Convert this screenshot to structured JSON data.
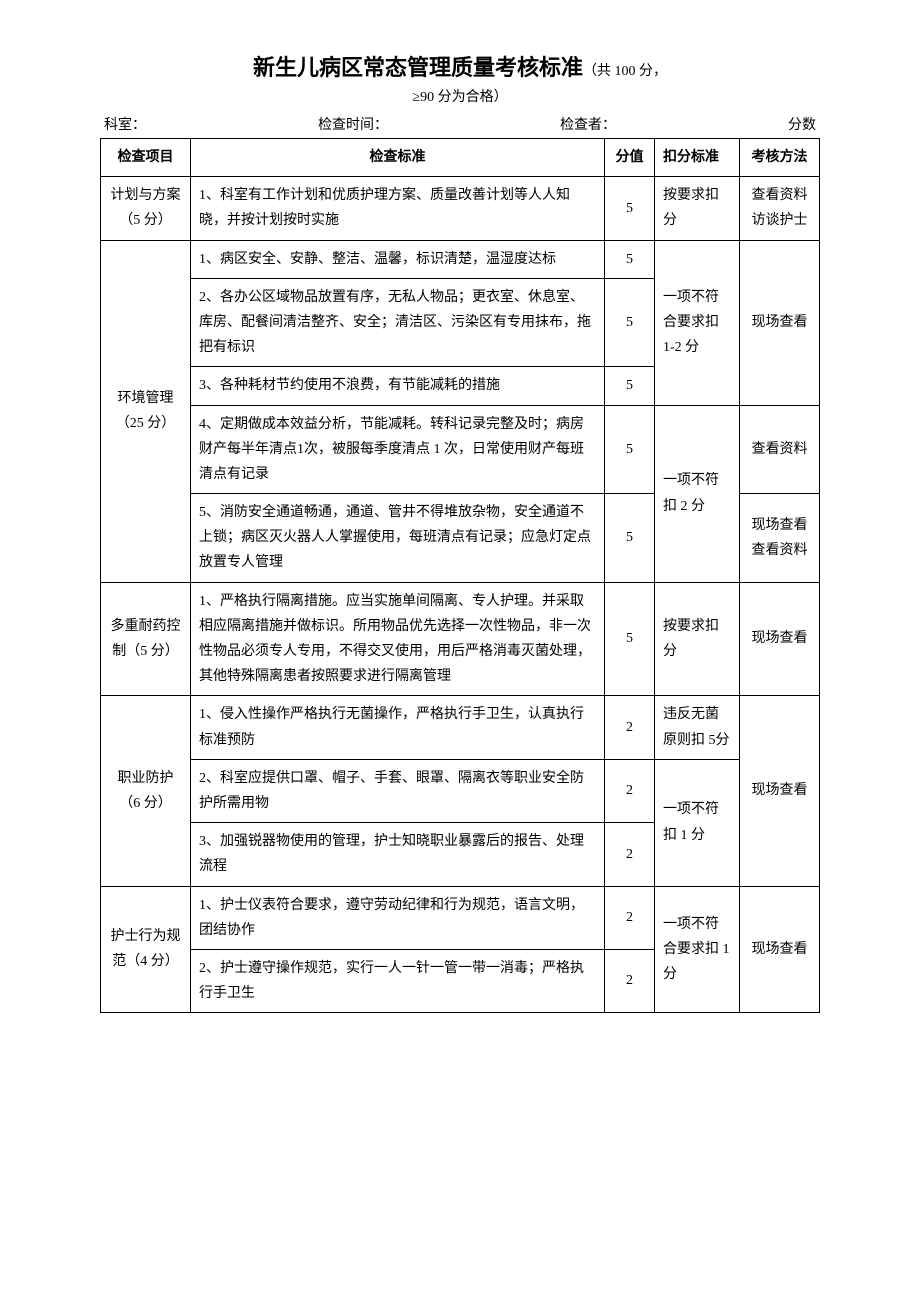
{
  "title_main": "新生儿病区常态管理质量考核标准",
  "title_suffix": "（共 100 分，",
  "subtitle": "≥90 分为合格）",
  "form": {
    "dept_label": "科室：",
    "time_label": "检查时间：",
    "checker_label": "检查者：",
    "score_label": "分数"
  },
  "headers": {
    "item": "检查项目",
    "standard": "检查标准",
    "score": "分值",
    "deduct": "扣分标准",
    "method": "考核方法"
  },
  "rows": [
    {
      "item": "计划与方案（5 分）",
      "standard": "1、科室有工作计划和优质护理方案、质量改善计划等人人知晓，并按计划按时实施",
      "score": "5",
      "deduct": "按要求扣分",
      "method": "查看资料访谈护士"
    }
  ],
  "env": {
    "item": "环境管理（25 分）",
    "r1": {
      "standard": "1、病区安全、安静、整洁、温馨，标识清楚，温湿度达标",
      "score": "5"
    },
    "r2": {
      "standard": "2、各办公区域物品放置有序，无私人物品；更衣室、休息室、库房、配餐间清洁整齐、安全；清洁区、污染区有专用抹布，拖把有标识",
      "score": "5"
    },
    "r3": {
      "standard": "3、各种耗材节约使用不浪费，有节能减耗的措施",
      "score": "5"
    },
    "deduct1": "一项不符合要求扣 1-2 分",
    "method1": "现场查看",
    "r4": {
      "standard": "4、定期做成本效益分析，节能减耗。转科记录完整及时；病房财产每半年清点1次，被服每季度清点 1 次，日常使用财产每班清点有记录",
      "score": "5"
    },
    "method2": "查看资料",
    "r5": {
      "standard": "5、消防安全通道畅通，通道、管井不得堆放杂物，安全通道不上锁；病区灭火器人人掌握使用，每班清点有记录；应急灯定点放置专人管理",
      "score": "5"
    },
    "deduct2": "一项不符扣 2 分",
    "method3": "现场查看查看资料"
  },
  "mdro": {
    "item": "多重耐药控制（5 分）",
    "standard": "1、严格执行隔离措施。应当实施单间隔离、专人护理。并采取相应隔离措施并做标识。所用物品优先选择一次性物品，非一次性物品必须专人专用，不得交叉使用，用后严格消毒灭菌处理，其他特殊隔离患者按照要求进行隔离管理",
    "score": "5",
    "deduct": "按要求扣分",
    "method": "现场查看"
  },
  "occ": {
    "item": "职业防护（6 分）",
    "r1": {
      "standard": "1、侵入性操作严格执行无菌操作，严格执行手卫生，认真执行标准预防",
      "score": "2",
      "deduct": "违反无菌原则扣 5分"
    },
    "r2": {
      "standard": "2、科室应提供口罩、帽子、手套、眼罩、隔离衣等职业安全防护所需用物",
      "score": "2"
    },
    "r3": {
      "standard": "3、加强锐器物使用的管理，护士知晓职业暴露后的报告、处理流程",
      "score": "2"
    },
    "deduct2": "一项不符扣 1 分",
    "method": "现场查看"
  },
  "nurse": {
    "item": "护士行为规范（4 分）",
    "r1": {
      "standard": "1、护士仪表符合要求，遵守劳动纪律和行为规范，语言文明，团结协作",
      "score": "2"
    },
    "r2": {
      "standard": "2、护士遵守操作规范，实行一人一针一管一带一消毒；严格执行手卫生",
      "score": "2"
    },
    "deduct": "一项不符合要求扣 1 分",
    "method": "现场查看"
  }
}
